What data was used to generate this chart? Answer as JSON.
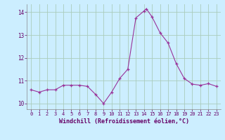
{
  "xlabel": "Windchill (Refroidissement éolien,°C)",
  "background_color": "#cceeff",
  "grid_color": "#aaccbb",
  "line_color": "#993399",
  "marker_color": "#993399",
  "xlim": [
    -0.5,
    23.5
  ],
  "ylim": [
    9.75,
    14.35
  ],
  "yticks": [
    10,
    11,
    12,
    13,
    14
  ],
  "xticks": [
    0,
    1,
    2,
    3,
    4,
    5,
    6,
    7,
    8,
    9,
    10,
    11,
    12,
    13,
    14,
    15,
    16,
    17,
    18,
    19,
    20,
    21,
    22,
    23
  ],
  "x": [
    0,
    1,
    2,
    3,
    4,
    5,
    6,
    7,
    8,
    9,
    10,
    11,
    12,
    13,
    14,
    14.3,
    15,
    16,
    17,
    18,
    19,
    20,
    21,
    22,
    23
  ],
  "y": [
    10.6,
    10.5,
    10.6,
    10.6,
    10.8,
    10.8,
    10.8,
    10.75,
    10.4,
    10.0,
    10.5,
    11.1,
    11.5,
    13.75,
    14.05,
    14.15,
    13.8,
    13.1,
    12.65,
    11.75,
    11.1,
    10.85,
    10.8,
    10.87,
    10.75
  ]
}
